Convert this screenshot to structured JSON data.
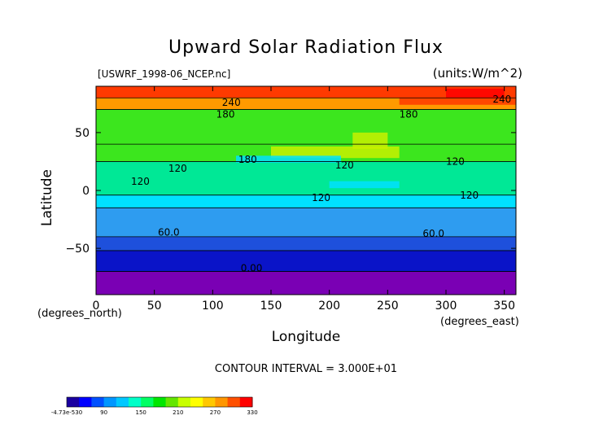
{
  "chart_data": {
    "type": "heatmap",
    "title": "Upward Solar Radiation Flux",
    "file_label": "[USWRF_1998-06_NCEP.nc]",
    "units_label": "(units:W/m^2)",
    "xlabel": "Longitude",
    "ylabel": "Latitude",
    "x_units": "(degrees_north)",
    "x_units_east": "(degrees_east)",
    "contour_interval": "CONTOUR INTERVAL = 3.000E+01",
    "xlim": [
      0,
      360
    ],
    "ylim": [
      -90,
      90
    ],
    "x_ticks": [
      0,
      50,
      100,
      150,
      200,
      250,
      300,
      350
    ],
    "y_ticks": [
      -50,
      0,
      50
    ],
    "bands": [
      {
        "lat_top": -70,
        "lat_bottom": -90,
        "level": 0
      },
      {
        "lat_top": -52,
        "lat_bottom": -70,
        "level": 30
      },
      {
        "lat_top": -40,
        "lat_bottom": -52,
        "level": 60
      },
      {
        "lat_top": -15,
        "lat_bottom": -40,
        "level": 90
      },
      {
        "lat_top": -4,
        "lat_bottom": -15,
        "level": 120
      },
      {
        "lat_top": 25,
        "lat_bottom": -4,
        "level": 150
      },
      {
        "lat_top": 40,
        "lat_bottom": 25,
        "level": 180
      },
      {
        "lat_top": 70,
        "lat_bottom": 40,
        "level": 180
      },
      {
        "lat_top": 80,
        "lat_bottom": 70,
        "level": 240
      },
      {
        "lat_top": 90,
        "lat_bottom": 80,
        "level": 270
      }
    ],
    "contour_labels": [
      {
        "text": "240",
        "lon": 108,
        "lat": 73
      },
      {
        "text": "180",
        "lon": 103,
        "lat": 63
      },
      {
        "text": "180",
        "lon": 260,
        "lat": 63
      },
      {
        "text": "240",
        "lon": 340,
        "lat": 76
      },
      {
        "text": "120",
        "lon": 62,
        "lat": 16
      },
      {
        "text": "120",
        "lon": 30,
        "lat": 5
      },
      {
        "text": "180",
        "lon": 122,
        "lat": 24
      },
      {
        "text": "120",
        "lon": 205,
        "lat": 19
      },
      {
        "text": "120",
        "lon": 300,
        "lat": 22
      },
      {
        "text": "120",
        "lon": 185,
        "lat": -9
      },
      {
        "text": "120",
        "lon": 312,
        "lat": -7
      },
      {
        "text": "60.0",
        "lon": 53,
        "lat": -39
      },
      {
        "text": "60.0",
        "lon": 280,
        "lat": -40
      },
      {
        "text": "0.00",
        "lon": 124,
        "lat": -70
      }
    ],
    "colorbar": {
      "tick_labels": [
        "-4.73e-530",
        "90",
        "150",
        "210",
        "270",
        "330"
      ],
      "colors": [
        "#1a00a0",
        "#0000ff",
        "#0050ff",
        "#0096ff",
        "#00c8ff",
        "#00ffc8",
        "#00ff64",
        "#00e600",
        "#64e600",
        "#c8ff00",
        "#ffff00",
        "#ffc800",
        "#ff9600",
        "#ff5000",
        "#ff0000"
      ]
    },
    "level_colors": {
      "0": "#7a00b4",
      "30": "#0a14c8",
      "60": "#1e50dc",
      "90": "#2e9cf0",
      "120": "#00e0ff",
      "150": "#00e896",
      "180": "#3ce61e",
      "240": "#ff9a00",
      "270": "#ff3a00"
    }
  }
}
